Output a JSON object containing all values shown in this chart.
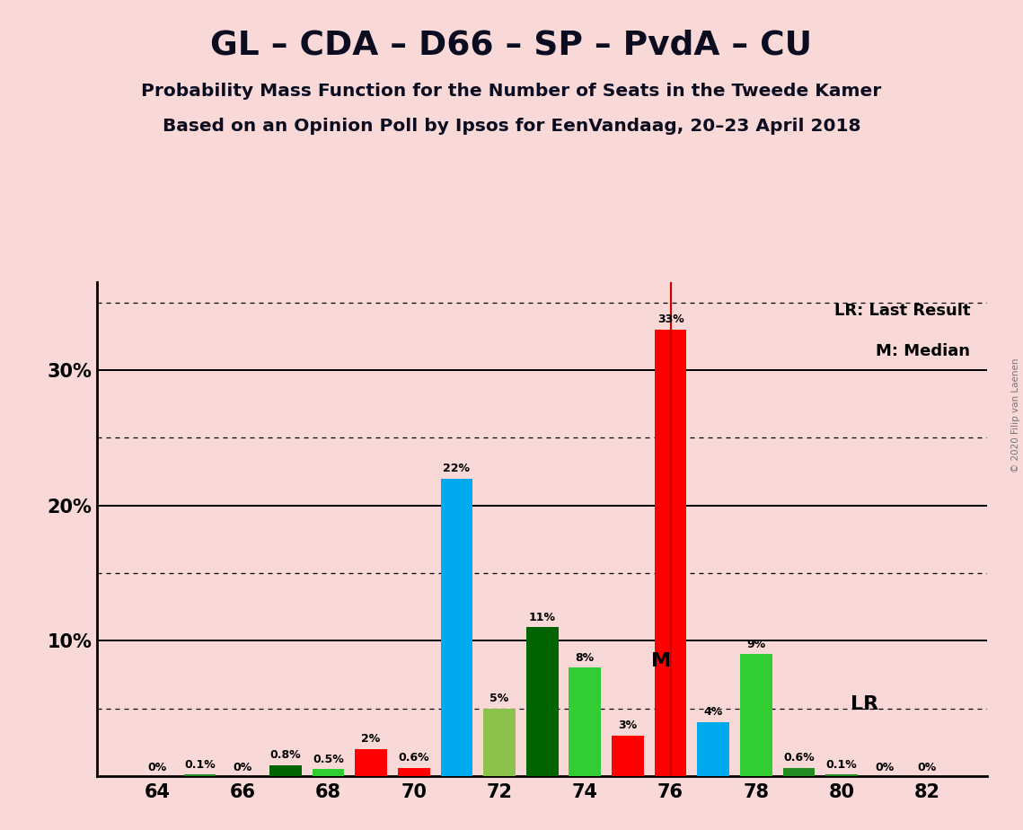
{
  "title1": "GL – CDA – D66 – SP – PvdA – CU",
  "title2": "Probability Mass Function for the Number of Seats in the Tweede Kamer",
  "title3": "Based on an Opinion Poll by Ipsos for EenVandaag, 20–23 April 2018",
  "copyright": "© 2020 Filip van Laenen",
  "background_color": "#f9d8d8",
  "bars": [
    {
      "seat": 64,
      "value": 0.0,
      "color": "#ff2020",
      "label": "0%"
    },
    {
      "seat": 65,
      "value": 0.1,
      "color": "#228b22",
      "label": "0.1%"
    },
    {
      "seat": 66,
      "value": 0.0,
      "color": "#228b22",
      "label": "0%"
    },
    {
      "seat": 67,
      "value": 0.8,
      "color": "#006400",
      "label": "0.8%"
    },
    {
      "seat": 68,
      "value": 0.5,
      "color": "#32cd32",
      "label": "0.5%"
    },
    {
      "seat": 69,
      "value": 2.0,
      "color": "#ff0000",
      "label": "2%"
    },
    {
      "seat": 70,
      "value": 0.6,
      "color": "#ff0000",
      "label": "0.6%"
    },
    {
      "seat": 71,
      "value": 22.0,
      "color": "#00aaee",
      "label": "22%"
    },
    {
      "seat": 72,
      "value": 5.0,
      "color": "#8bc34a",
      "label": "5%"
    },
    {
      "seat": 73,
      "value": 11.0,
      "color": "#006400",
      "label": "11%"
    },
    {
      "seat": 74,
      "value": 8.0,
      "color": "#32cd32",
      "label": "8%"
    },
    {
      "seat": 75,
      "value": 3.0,
      "color": "#ff0000",
      "label": "3%"
    },
    {
      "seat": 76,
      "value": 33.0,
      "color": "#ff0000",
      "label": "33%"
    },
    {
      "seat": 77,
      "value": 4.0,
      "color": "#00aaee",
      "label": "4%"
    },
    {
      "seat": 78,
      "value": 9.0,
      "color": "#32cd32",
      "label": "9%"
    },
    {
      "seat": 79,
      "value": 0.6,
      "color": "#228b22",
      "label": "0.6%"
    },
    {
      "seat": 80,
      "value": 0.1,
      "color": "#228b22",
      "label": "0.1%"
    },
    {
      "seat": 81,
      "value": 0.0,
      "color": "#228b22",
      "label": "0%"
    },
    {
      "seat": 82,
      "value": 0.0,
      "color": "#228b22",
      "label": "0%"
    }
  ],
  "lr_seat": 76,
  "median_seat": 75,
  "xlim_lo": 62.6,
  "xlim_hi": 83.4,
  "ylim_lo": 0,
  "ylim_hi": 36.5,
  "xticks": [
    64,
    66,
    68,
    70,
    72,
    74,
    76,
    78,
    80,
    82
  ],
  "yticks_solid": [
    10,
    20,
    30
  ],
  "yticks_dotted": [
    5,
    15,
    25,
    35
  ],
  "legend_lr": "LR: Last Result",
  "legend_m": "M: Median",
  "lr_label": "LR",
  "m_label": "M",
  "bar_width": 0.75
}
